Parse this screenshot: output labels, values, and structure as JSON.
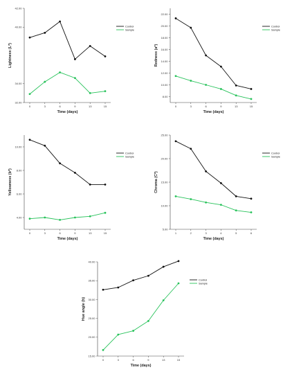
{
  "colors": {
    "control": "#111111",
    "sample": "#27c25a",
    "axis": "#444444"
  },
  "legend": {
    "control": "Control",
    "sample": "Sample"
  },
  "chart_data": [
    {
      "type": "line",
      "xlabel": "Time (days)",
      "ylabel": "Lightness (L*)",
      "categories": [
        "0",
        "3",
        "6",
        "9",
        "13",
        "15"
      ],
      "ylim": [
        32,
        42
      ],
      "yticks": [
        32,
        34,
        40,
        42
      ],
      "ytick_labels": [
        "32.00",
        "34.00",
        "40.00",
        "42.00"
      ],
      "series": [
        {
          "name": "Control",
          "values": [
            38.9,
            39.4,
            40.6,
            36.6,
            38.0,
            36.9
          ]
        },
        {
          "name": "Sample",
          "values": [
            32.9,
            34.2,
            35.2,
            34.6,
            33.0,
            33.2
          ]
        }
      ]
    },
    {
      "type": "line",
      "xlabel": "Time (days)",
      "ylabel": "Redness (a*)",
      "categories": [
        "0",
        "3",
        "6",
        "9",
        "13",
        "15"
      ],
      "ylim": [
        7,
        23
      ],
      "yticks": [
        8,
        10,
        12,
        14,
        16,
        18,
        20,
        22
      ],
      "ytick_labels": [
        "8.00",
        "10.00",
        "12.00",
        "14.00",
        "16.00",
        "18.00",
        "20.00",
        "22.00"
      ],
      "series": [
        {
          "name": "Control",
          "values": [
            21.3,
            19.7,
            15.0,
            13.1,
            9.9,
            9.3
          ]
        },
        {
          "name": "Sample",
          "values": [
            11.5,
            10.7,
            10.0,
            9.3,
            8.2,
            7.6
          ]
        }
      ]
    },
    {
      "type": "line",
      "xlabel": "Time (days)",
      "ylabel": "Yellowness (b*)",
      "categories": [
        "0",
        "3",
        "6",
        "9",
        "13",
        "15"
      ],
      "ylim": [
        3,
        11
      ],
      "yticks": [
        4,
        6,
        8,
        10
      ],
      "ytick_labels": [
        "4.00",
        "6.00",
        "8.00",
        "10.00"
      ],
      "series": [
        {
          "name": "Control",
          "values": [
            10.6,
            10.1,
            8.6,
            7.8,
            6.8,
            6.8
          ]
        },
        {
          "name": "Sample",
          "values": [
            3.9,
            4.0,
            3.8,
            4.0,
            4.1,
            4.4
          ]
        }
      ]
    },
    {
      "type": "line",
      "xlabel": "Time (days)",
      "ylabel": "Chroma (C*)",
      "categories": [
        "1",
        "2",
        "3",
        "4",
        "5",
        "6"
      ],
      "ylim": [
        5,
        25
      ],
      "yticks": [
        5,
        10,
        15,
        20,
        25
      ],
      "ytick_labels": [
        "5.00",
        "10.00",
        "15.00",
        "20.00",
        "25.00"
      ],
      "series": [
        {
          "name": "Control",
          "values": [
            23.7,
            22.1,
            17.3,
            14.8,
            12.0,
            11.5
          ]
        },
        {
          "name": "Sample",
          "values": [
            12.0,
            11.4,
            10.7,
            10.2,
            9.0,
            8.6
          ]
        }
      ]
    },
    {
      "type": "line",
      "xlabel": "Time (days)",
      "ylabel": "Hue angle (h)",
      "categories": [
        "0",
        "3",
        "6",
        "9",
        "13",
        "15"
      ],
      "ylim": [
        15,
        40
      ],
      "yticks": [
        15,
        20,
        25,
        30,
        35,
        40
      ],
      "ytick_labels": [
        "15.00",
        "20.00",
        "25.00",
        "30.00",
        "35.00",
        "40.00"
      ],
      "series": [
        {
          "name": "Control",
          "values": [
            32.6,
            33.2,
            35.1,
            36.3,
            38.7,
            40.2
          ]
        },
        {
          "name": "Sample",
          "values": [
            16.6,
            20.7,
            21.7,
            24.3,
            29.8,
            34.3
          ]
        }
      ]
    }
  ]
}
